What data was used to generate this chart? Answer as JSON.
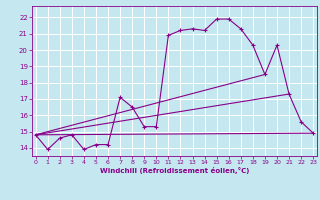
{
  "bg_color": "#c5e8f0",
  "grid_color": "#ffffff",
  "line_color": "#880088",
  "xlabel": "Windchill (Refroidissement éolien,°C)",
  "x_ticks": [
    0,
    1,
    2,
    3,
    4,
    5,
    6,
    7,
    8,
    9,
    10,
    11,
    12,
    13,
    14,
    15,
    16,
    17,
    18,
    19,
    20,
    21,
    22,
    23
  ],
  "y_ticks": [
    14,
    15,
    16,
    17,
    18,
    19,
    20,
    21,
    22
  ],
  "ylim": [
    13.5,
    22.7
  ],
  "xlim": [
    -0.3,
    23.3
  ],
  "curve1_x": [
    0,
    1,
    2,
    3,
    4,
    5,
    6,
    7,
    8,
    9,
    10,
    11,
    12,
    13,
    14,
    15,
    16,
    17,
    18,
    19,
    20,
    21,
    22,
    23
  ],
  "curve1_y": [
    14.8,
    13.9,
    14.6,
    14.8,
    13.9,
    14.2,
    14.2,
    17.1,
    16.5,
    15.3,
    15.3,
    20.9,
    21.2,
    21.3,
    21.2,
    21.9,
    21.9,
    21.3,
    20.3,
    18.5,
    20.3,
    17.3,
    15.6,
    14.9
  ],
  "line2_x": [
    0,
    23
  ],
  "line2_y": [
    14.8,
    14.9
  ],
  "line3_x": [
    0,
    19
  ],
  "line3_y": [
    14.8,
    18.5
  ],
  "line4_x": [
    0,
    21
  ],
  "line4_y": [
    14.8,
    17.3
  ]
}
